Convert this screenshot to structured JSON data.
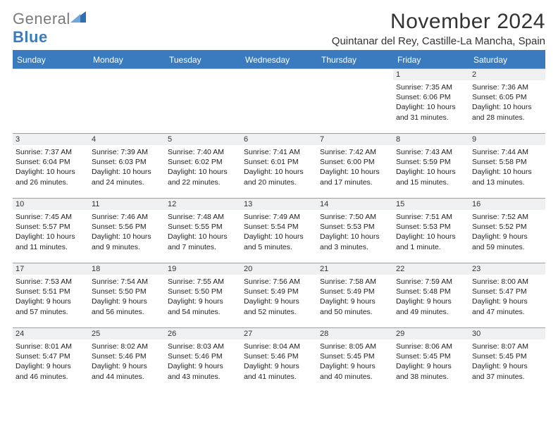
{
  "logo": {
    "word1": "General",
    "word2": "Blue"
  },
  "title": "November 2024",
  "location": "Quintanar del Rey, Castille-La Mancha, Spain",
  "colors": {
    "header_bg": "#3a7bbf",
    "header_text": "#ffffff",
    "border": "#7da7cc",
    "daynum_bg": "#eef0f2",
    "body_text": "#222222",
    "title_text": "#333333",
    "logo_gray": "#7a7a7a",
    "logo_blue": "#3a7bbf"
  },
  "weekdays": [
    "Sunday",
    "Monday",
    "Tuesday",
    "Wednesday",
    "Thursday",
    "Friday",
    "Saturday"
  ],
  "weeks": [
    [
      {
        "n": "",
        "sr": "",
        "ss": "",
        "dl1": "",
        "dl2": ""
      },
      {
        "n": "",
        "sr": "",
        "ss": "",
        "dl1": "",
        "dl2": ""
      },
      {
        "n": "",
        "sr": "",
        "ss": "",
        "dl1": "",
        "dl2": ""
      },
      {
        "n": "",
        "sr": "",
        "ss": "",
        "dl1": "",
        "dl2": ""
      },
      {
        "n": "",
        "sr": "",
        "ss": "",
        "dl1": "",
        "dl2": ""
      },
      {
        "n": "1",
        "sr": "Sunrise: 7:35 AM",
        "ss": "Sunset: 6:06 PM",
        "dl1": "Daylight: 10 hours",
        "dl2": "and 31 minutes."
      },
      {
        "n": "2",
        "sr": "Sunrise: 7:36 AM",
        "ss": "Sunset: 6:05 PM",
        "dl1": "Daylight: 10 hours",
        "dl2": "and 28 minutes."
      }
    ],
    [
      {
        "n": "3",
        "sr": "Sunrise: 7:37 AM",
        "ss": "Sunset: 6:04 PM",
        "dl1": "Daylight: 10 hours",
        "dl2": "and 26 minutes."
      },
      {
        "n": "4",
        "sr": "Sunrise: 7:39 AM",
        "ss": "Sunset: 6:03 PM",
        "dl1": "Daylight: 10 hours",
        "dl2": "and 24 minutes."
      },
      {
        "n": "5",
        "sr": "Sunrise: 7:40 AM",
        "ss": "Sunset: 6:02 PM",
        "dl1": "Daylight: 10 hours",
        "dl2": "and 22 minutes."
      },
      {
        "n": "6",
        "sr": "Sunrise: 7:41 AM",
        "ss": "Sunset: 6:01 PM",
        "dl1": "Daylight: 10 hours",
        "dl2": "and 20 minutes."
      },
      {
        "n": "7",
        "sr": "Sunrise: 7:42 AM",
        "ss": "Sunset: 6:00 PM",
        "dl1": "Daylight: 10 hours",
        "dl2": "and 17 minutes."
      },
      {
        "n": "8",
        "sr": "Sunrise: 7:43 AM",
        "ss": "Sunset: 5:59 PM",
        "dl1": "Daylight: 10 hours",
        "dl2": "and 15 minutes."
      },
      {
        "n": "9",
        "sr": "Sunrise: 7:44 AM",
        "ss": "Sunset: 5:58 PM",
        "dl1": "Daylight: 10 hours",
        "dl2": "and 13 minutes."
      }
    ],
    [
      {
        "n": "10",
        "sr": "Sunrise: 7:45 AM",
        "ss": "Sunset: 5:57 PM",
        "dl1": "Daylight: 10 hours",
        "dl2": "and 11 minutes."
      },
      {
        "n": "11",
        "sr": "Sunrise: 7:46 AM",
        "ss": "Sunset: 5:56 PM",
        "dl1": "Daylight: 10 hours",
        "dl2": "and 9 minutes."
      },
      {
        "n": "12",
        "sr": "Sunrise: 7:48 AM",
        "ss": "Sunset: 5:55 PM",
        "dl1": "Daylight: 10 hours",
        "dl2": "and 7 minutes."
      },
      {
        "n": "13",
        "sr": "Sunrise: 7:49 AM",
        "ss": "Sunset: 5:54 PM",
        "dl1": "Daylight: 10 hours",
        "dl2": "and 5 minutes."
      },
      {
        "n": "14",
        "sr": "Sunrise: 7:50 AM",
        "ss": "Sunset: 5:53 PM",
        "dl1": "Daylight: 10 hours",
        "dl2": "and 3 minutes."
      },
      {
        "n": "15",
        "sr": "Sunrise: 7:51 AM",
        "ss": "Sunset: 5:53 PM",
        "dl1": "Daylight: 10 hours",
        "dl2": "and 1 minute."
      },
      {
        "n": "16",
        "sr": "Sunrise: 7:52 AM",
        "ss": "Sunset: 5:52 PM",
        "dl1": "Daylight: 9 hours",
        "dl2": "and 59 minutes."
      }
    ],
    [
      {
        "n": "17",
        "sr": "Sunrise: 7:53 AM",
        "ss": "Sunset: 5:51 PM",
        "dl1": "Daylight: 9 hours",
        "dl2": "and 57 minutes."
      },
      {
        "n": "18",
        "sr": "Sunrise: 7:54 AM",
        "ss": "Sunset: 5:50 PM",
        "dl1": "Daylight: 9 hours",
        "dl2": "and 56 minutes."
      },
      {
        "n": "19",
        "sr": "Sunrise: 7:55 AM",
        "ss": "Sunset: 5:50 PM",
        "dl1": "Daylight: 9 hours",
        "dl2": "and 54 minutes."
      },
      {
        "n": "20",
        "sr": "Sunrise: 7:56 AM",
        "ss": "Sunset: 5:49 PM",
        "dl1": "Daylight: 9 hours",
        "dl2": "and 52 minutes."
      },
      {
        "n": "21",
        "sr": "Sunrise: 7:58 AM",
        "ss": "Sunset: 5:49 PM",
        "dl1": "Daylight: 9 hours",
        "dl2": "and 50 minutes."
      },
      {
        "n": "22",
        "sr": "Sunrise: 7:59 AM",
        "ss": "Sunset: 5:48 PM",
        "dl1": "Daylight: 9 hours",
        "dl2": "and 49 minutes."
      },
      {
        "n": "23",
        "sr": "Sunrise: 8:00 AM",
        "ss": "Sunset: 5:47 PM",
        "dl1": "Daylight: 9 hours",
        "dl2": "and 47 minutes."
      }
    ],
    [
      {
        "n": "24",
        "sr": "Sunrise: 8:01 AM",
        "ss": "Sunset: 5:47 PM",
        "dl1": "Daylight: 9 hours",
        "dl2": "and 46 minutes."
      },
      {
        "n": "25",
        "sr": "Sunrise: 8:02 AM",
        "ss": "Sunset: 5:46 PM",
        "dl1": "Daylight: 9 hours",
        "dl2": "and 44 minutes."
      },
      {
        "n": "26",
        "sr": "Sunrise: 8:03 AM",
        "ss": "Sunset: 5:46 PM",
        "dl1": "Daylight: 9 hours",
        "dl2": "and 43 minutes."
      },
      {
        "n": "27",
        "sr": "Sunrise: 8:04 AM",
        "ss": "Sunset: 5:46 PM",
        "dl1": "Daylight: 9 hours",
        "dl2": "and 41 minutes."
      },
      {
        "n": "28",
        "sr": "Sunrise: 8:05 AM",
        "ss": "Sunset: 5:45 PM",
        "dl1": "Daylight: 9 hours",
        "dl2": "and 40 minutes."
      },
      {
        "n": "29",
        "sr": "Sunrise: 8:06 AM",
        "ss": "Sunset: 5:45 PM",
        "dl1": "Daylight: 9 hours",
        "dl2": "and 38 minutes."
      },
      {
        "n": "30",
        "sr": "Sunrise: 8:07 AM",
        "ss": "Sunset: 5:45 PM",
        "dl1": "Daylight: 9 hours",
        "dl2": "and 37 minutes."
      }
    ]
  ]
}
